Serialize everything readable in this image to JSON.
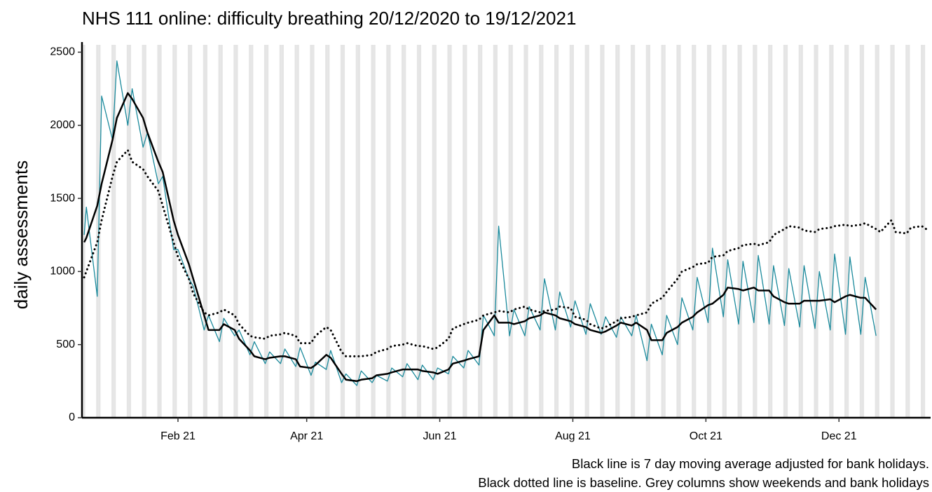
{
  "chart_data": {
    "type": "line",
    "title": "NHS 111 online: difficulty breathing 20/12/2020 to 19/12/2021",
    "ylabel": "daily assessments",
    "notes": [
      "Black line is 7 day moving average adjusted for bank holidays.",
      "Black dotted line is baseline. Grey columns show weekends and bank holidays"
    ],
    "weekend_shading": true,
    "shading_color": "#e5e5e5",
    "grid": false,
    "xlim": [
      "2020-12-19",
      "2022-01-12"
    ],
    "xticks": [
      {
        "value": "2021-02-01",
        "label": "Feb 21"
      },
      {
        "value": "2021-04-01",
        "label": "Apr 21"
      },
      {
        "value": "2021-06-01",
        "label": "Jun 21"
      },
      {
        "value": "2021-08-01",
        "label": "Aug 21"
      },
      {
        "value": "2021-10-01",
        "label": "Oct 21"
      },
      {
        "value": "2021-12-01",
        "label": "Dec 21"
      }
    ],
    "ylim": [
      0,
      2550
    ],
    "yticks": [
      0,
      500,
      1000,
      1500,
      2000,
      2500
    ],
    "x": [
      "2020-12-20",
      "2020-12-21",
      "2020-12-26",
      "2020-12-28",
      "2021-01-02",
      "2021-01-04",
      "2021-01-09",
      "2021-01-11",
      "2021-01-16",
      "2021-01-18",
      "2021-01-23",
      "2021-01-25",
      "2021-01-30",
      "2021-02-01",
      "2021-02-06",
      "2021-02-08",
      "2021-02-13",
      "2021-02-15",
      "2021-02-20",
      "2021-02-22",
      "2021-02-27",
      "2021-03-01",
      "2021-03-06",
      "2021-03-08",
      "2021-03-13",
      "2021-03-15",
      "2021-03-20",
      "2021-03-22",
      "2021-03-27",
      "2021-03-29",
      "2021-04-03",
      "2021-04-05",
      "2021-04-10",
      "2021-04-12",
      "2021-04-17",
      "2021-04-19",
      "2021-04-24",
      "2021-04-26",
      "2021-05-01",
      "2021-05-03",
      "2021-05-08",
      "2021-05-10",
      "2021-05-15",
      "2021-05-17",
      "2021-05-22",
      "2021-05-24",
      "2021-05-29",
      "2021-05-31",
      "2021-06-05",
      "2021-06-07",
      "2021-06-12",
      "2021-06-14",
      "2021-06-19",
      "2021-06-21",
      "2021-06-26",
      "2021-06-28",
      "2021-07-03",
      "2021-07-05",
      "2021-07-10",
      "2021-07-12",
      "2021-07-17",
      "2021-07-19",
      "2021-07-24",
      "2021-07-26",
      "2021-07-31",
      "2021-08-02",
      "2021-08-07",
      "2021-08-09",
      "2021-08-14",
      "2021-08-16",
      "2021-08-21",
      "2021-08-23",
      "2021-08-28",
      "2021-08-30",
      "2021-09-04",
      "2021-09-06",
      "2021-09-11",
      "2021-09-13",
      "2021-09-18",
      "2021-09-20",
      "2021-09-25",
      "2021-09-27",
      "2021-10-02",
      "2021-10-04",
      "2021-10-09",
      "2021-10-11",
      "2021-10-16",
      "2021-10-18",
      "2021-10-23",
      "2021-10-25",
      "2021-10-30",
      "2021-11-01",
      "2021-11-06",
      "2021-11-08",
      "2021-11-13",
      "2021-11-15",
      "2021-11-20",
      "2021-11-22",
      "2021-11-27",
      "2021-11-29",
      "2021-12-04",
      "2021-12-06",
      "2021-12-11",
      "2021-12-13",
      "2021-12-18",
      "2021-12-20",
      "2021-12-25",
      "2021-12-27",
      "2022-01-01",
      "2022-01-03",
      "2022-01-08",
      "2022-01-10"
    ],
    "series": [
      {
        "color": "#1b8a9c",
        "line_style": "solid",
        "width": 1.3,
        "values": [
          1250,
          1440,
          830,
          2200,
          1900,
          2440,
          2000,
          2250,
          1850,
          1950,
          1600,
          1650,
          1150,
          1150,
          950,
          900,
          600,
          700,
          520,
          680,
          560,
          600,
          430,
          520,
          370,
          450,
          370,
          470,
          350,
          480,
          290,
          380,
          330,
          460,
          240,
          300,
          220,
          320,
          240,
          290,
          250,
          340,
          280,
          370,
          260,
          360,
          260,
          340,
          300,
          420,
          340,
          460,
          360,
          700,
          560,
          1310,
          560,
          740,
          560,
          760,
          600,
          950,
          600,
          860,
          620,
          800,
          570,
          780,
          570,
          690,
          550,
          690,
          560,
          700,
          390,
          640,
          430,
          700,
          500,
          820,
          600,
          960,
          650,
          1160,
          690,
          1080,
          640,
          1070,
          650,
          1110,
          640,
          1040,
          630,
          1020,
          620,
          1040,
          610,
          1000,
          600,
          1120,
          570,
          1100,
          570,
          960,
          560,
          null,
          null,
          null,
          null,
          null,
          null,
          null
        ]
      },
      {
        "color": "#000000",
        "line_style": "solid",
        "width": 2.5,
        "values": [
          1200,
          1230,
          1450,
          1600,
          1900,
          2050,
          2220,
          2180,
          2050,
          1950,
          1750,
          1680,
          1350,
          1250,
          1050,
          950,
          700,
          600,
          600,
          640,
          600,
          540,
          460,
          420,
          400,
          410,
          420,
          420,
          400,
          350,
          340,
          360,
          430,
          410,
          300,
          260,
          250,
          260,
          270,
          290,
          300,
          310,
          330,
          330,
          330,
          320,
          310,
          300,
          330,
          370,
          390,
          400,
          420,
          600,
          700,
          650,
          650,
          640,
          660,
          680,
          700,
          720,
          700,
          680,
          660,
          640,
          620,
          600,
          580,
          590,
          630,
          650,
          630,
          650,
          600,
          530,
          530,
          580,
          620,
          650,
          690,
          720,
          770,
          780,
          840,
          890,
          880,
          870,
          890,
          870,
          870,
          830,
          790,
          780,
          780,
          800,
          800,
          800,
          810,
          790,
          830,
          840,
          820,
          820,
          740,
          null,
          null,
          null,
          null,
          null,
          null,
          null
        ]
      },
      {
        "color": "#000000",
        "line_style": "dotted",
        "width": 2.5,
        "values": [
          960,
          1000,
          1200,
          1350,
          1650,
          1750,
          1830,
          1750,
          1700,
          1650,
          1550,
          1450,
          1200,
          1100,
          950,
          850,
          720,
          700,
          720,
          740,
          700,
          640,
          560,
          550,
          540,
          560,
          570,
          580,
          560,
          510,
          510,
          560,
          620,
          600,
          450,
          420,
          420,
          420,
          430,
          450,
          470,
          490,
          500,
          510,
          490,
          490,
          470,
          480,
          540,
          610,
          640,
          650,
          670,
          700,
          720,
          730,
          720,
          740,
          760,
          740,
          720,
          730,
          740,
          760,
          750,
          690,
          670,
          640,
          610,
          620,
          660,
          680,
          690,
          700,
          720,
          780,
          820,
          860,
          950,
          1000,
          1030,
          1050,
          1060,
          1100,
          1110,
          1140,
          1160,
          1180,
          1190,
          1180,
          1200,
          1250,
          1290,
          1310,
          1300,
          1280,
          1270,
          1290,
          1300,
          1310,
          1320,
          1310,
          1320,
          1330,
          1290,
          1270,
          1350,
          1270,
          1260,
          1300,
          1310,
          1290
        ]
      }
    ]
  }
}
